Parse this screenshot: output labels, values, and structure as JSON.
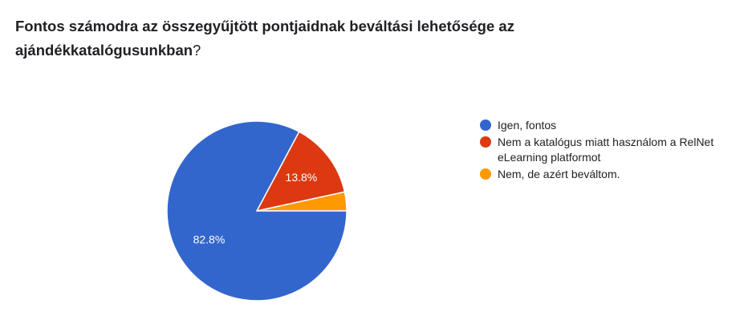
{
  "question": {
    "bold_part": "Fontos számodra az összegyűjtött pontjaidnak beváltási lehetősége az ajándékkatalógusunkban",
    "plain_part": "?"
  },
  "chart_data": {
    "type": "pie",
    "title": "Fontos számodra az összegyűjtött pontjaidnak beváltási lehetősége az ajándékkatalógusunkban?",
    "slices": [
      {
        "label": "Igen, fontos",
        "value": 82.8,
        "display": "82.8%",
        "color": "#3366cc"
      },
      {
        "label": "Nem a katalógus miatt használom a RelNet eLearning platformot",
        "value": 13.8,
        "display": "13.8%",
        "color": "#dc3912"
      },
      {
        "label": "Nem, de azért beváltom.",
        "value": 3.4,
        "display": "",
        "color": "#ff9900"
      }
    ],
    "legend_position": "right"
  }
}
